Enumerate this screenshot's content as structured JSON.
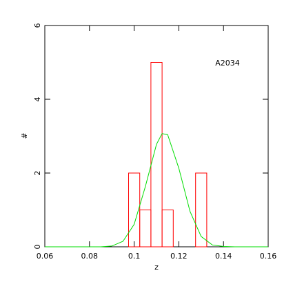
{
  "chart_data": {
    "type": "histogram",
    "xlabel": "z",
    "ylabel": "#",
    "annotation": "A2034",
    "bins": [
      0.0975,
      0.1025,
      0.1075,
      0.1125,
      0.1175,
      0.1225,
      0.1275,
      0.1325
    ],
    "values": [
      2,
      1,
      5,
      1,
      0,
      0,
      2
    ],
    "color": "#ff0000",
    "curve": {
      "type": "line",
      "color": "#00dd00",
      "x": [
        0.06,
        0.065,
        0.07,
        0.075,
        0.08,
        0.085,
        0.09,
        0.095,
        0.1,
        0.105,
        0.11,
        0.1125,
        0.115,
        0.12,
        0.125,
        0.13,
        0.135,
        0.14,
        0.145,
        0.15,
        0.155,
        0.16
      ],
      "values": [
        0,
        0,
        0,
        0,
        0,
        0,
        0.02,
        0.15,
        0.61,
        1.63,
        2.78,
        3.07,
        3.04,
        2.13,
        0.96,
        0.28,
        0.05,
        0.01,
        0,
        0,
        0,
        0
      ]
    },
    "xlim": [
      0.06,
      0.16
    ],
    "xticks": [
      0.06,
      0.08,
      0.1,
      0.12,
      0.14,
      0.16
    ],
    "ylim": [
      0,
      6
    ],
    "yticks": [
      0,
      2,
      4,
      6
    ]
  }
}
